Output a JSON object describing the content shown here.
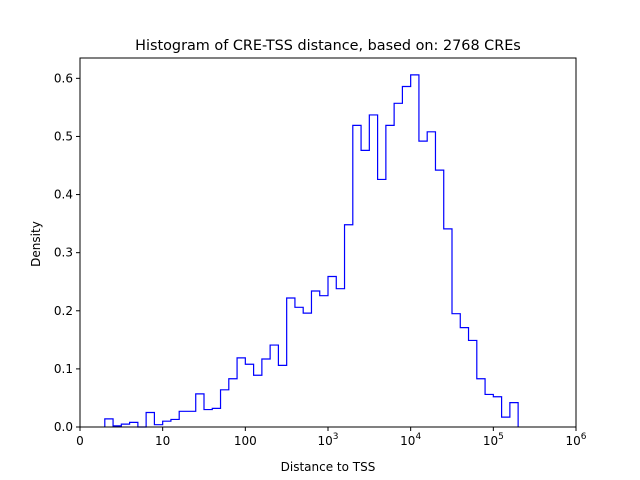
{
  "chart_data": {
    "type": "histogram",
    "title": "Histogram of CRE-TSS distance, based on: 2768 CREs",
    "xlabel": "Distance to TSS",
    "ylabel": "Density",
    "x_scale": "log10(distance + 1)",
    "xlim": [
      0,
      6
    ],
    "ylim": [
      0,
      0.635
    ],
    "x_ticks": [
      {
        "value": 0,
        "label": "0",
        "sup": ""
      },
      {
        "value": 1,
        "label": "10",
        "sup": ""
      },
      {
        "value": 2,
        "label": "100",
        "sup": ""
      },
      {
        "value": 3,
        "label": "10",
        "sup": "3"
      },
      {
        "value": 4,
        "label": "10",
        "sup": "4"
      },
      {
        "value": 5,
        "label": "10",
        "sup": "5"
      },
      {
        "value": 6,
        "label": "10",
        "sup": "6"
      }
    ],
    "y_ticks": [
      {
        "value": 0.0,
        "label": "0.0"
      },
      {
        "value": 0.1,
        "label": "0.1"
      },
      {
        "value": 0.2,
        "label": "0.2"
      },
      {
        "value": 0.3,
        "label": "0.3"
      },
      {
        "value": 0.4,
        "label": "0.4"
      },
      {
        "value": 0.5,
        "label": "0.5"
      },
      {
        "value": 0.6,
        "label": "0.6"
      }
    ],
    "bin_start": 0.3,
    "bin_width": 0.1,
    "densities": [
      0.014,
      0.002,
      0.005,
      0.008,
      0.0,
      0.025,
      0.004,
      0.01,
      0.013,
      0.027,
      0.027,
      0.057,
      0.03,
      0.032,
      0.064,
      0.083,
      0.119,
      0.108,
      0.089,
      0.117,
      0.141,
      0.106,
      0.222,
      0.206,
      0.196,
      0.234,
      0.226,
      0.259,
      0.238,
      0.348,
      0.519,
      0.476,
      0.537,
      0.426,
      0.519,
      0.557,
      0.586,
      0.606,
      0.492,
      0.508,
      0.442,
      0.341,
      0.195,
      0.171,
      0.149,
      0.083,
      0.056,
      0.052,
      0.017,
      0.042
    ],
    "line_color": "#0000ff",
    "grid": false
  }
}
